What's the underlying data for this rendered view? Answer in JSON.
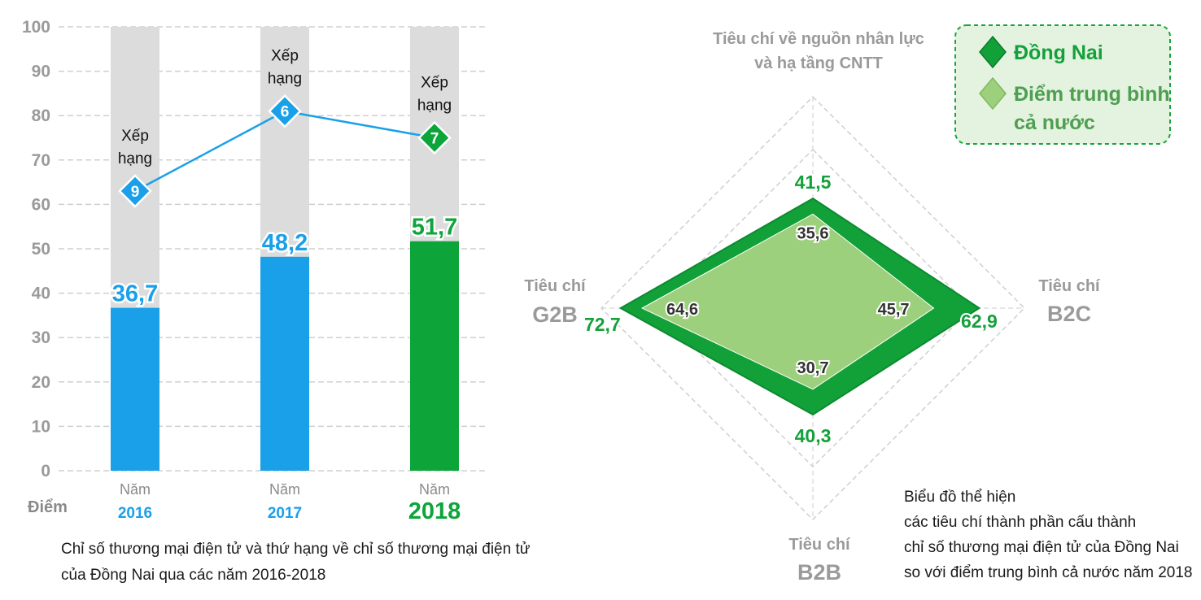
{
  "chart_data": [
    {
      "type": "bar",
      "y_axis_label": "Điểm",
      "ylim": [
        0,
        100
      ],
      "y_ticks": [
        0,
        10,
        20,
        30,
        40,
        50,
        60,
        70,
        80,
        90,
        100
      ],
      "grid": true,
      "categories": [
        {
          "prefix": "Năm",
          "year": "2016"
        },
        {
          "prefix": "Năm",
          "year": "2017"
        },
        {
          "prefix": "Năm",
          "year": "2018"
        }
      ],
      "values": [
        36.7,
        48.2,
        51.7
      ],
      "value_labels": [
        "36,7",
        "48,2",
        "51,7"
      ],
      "bar_colors": [
        "#1aa0e8",
        "#1aa0e8",
        "#0da53a"
      ],
      "rank_series": {
        "label_line1": "Xếp",
        "label_line2": "hạng",
        "ranks": [
          "9",
          "6",
          "7"
        ],
        "plot_values": [
          63,
          81,
          75
        ],
        "colors": [
          "#1aa0e8",
          "#1aa0e8",
          "#0da53a"
        ]
      },
      "caption_lines": [
        "Chỉ số thương mại điện tử và thứ hạng về chỉ số thương mại điện tử",
        "của Đồng Nai qua các năm 2016-2018"
      ]
    },
    {
      "type": "radar",
      "max_value": 100,
      "axes": [
        {
          "label_lines": [
            "Tiêu chí về nguồn nhân lực",
            "và hạ tầng CNTT"
          ],
          "dong_nai": 41.5,
          "national": 35.6,
          "dong_nai_label": "41,5",
          "national_label": "35,6"
        },
        {
          "label_lines": [
            "Tiêu chí",
            "B2C"
          ],
          "dong_nai": 62.9,
          "national": 45.7,
          "dong_nai_label": "62,9",
          "national_label": "45,7"
        },
        {
          "label_lines": [
            "Tiêu chí",
            "B2B"
          ],
          "dong_nai": 40.3,
          "national": 30.7,
          "dong_nai_label": "40,3",
          "national_label": "30,7"
        },
        {
          "label_lines": [
            "Tiêu chí",
            "G2B"
          ],
          "dong_nai": 72.7,
          "national": 64.6,
          "dong_nai_label": "72,7",
          "national_label": "64,6"
        }
      ],
      "series": [
        {
          "name": "Đồng Nai",
          "color": "#12a038"
        },
        {
          "name_lines": [
            "Điểm trung bình",
            "cả nước"
          ],
          "color": "#9cd07c"
        }
      ],
      "caption_lines": [
        "Biểu đồ thể hiện",
        "các tiêu chí thành phần cấu thành",
        "chỉ số thương mại điện tử của Đồng Nai",
        "so với điểm trung bình cả nước năm 2018"
      ]
    }
  ]
}
